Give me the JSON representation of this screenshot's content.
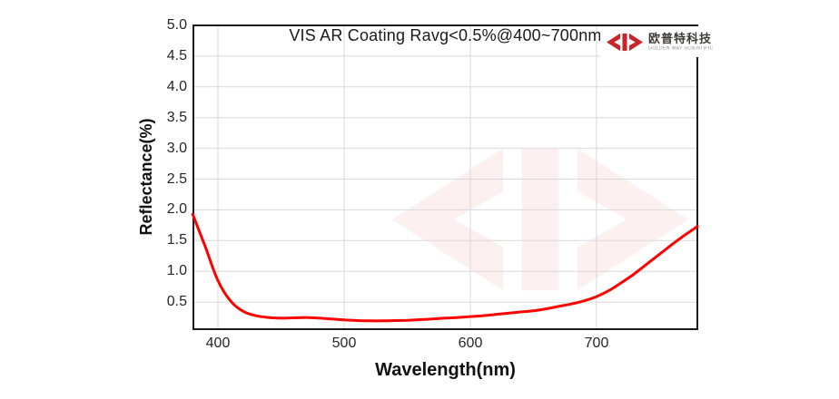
{
  "page": {
    "background": "#ffffff"
  },
  "header_logo": {
    "company_cn": "欧普特科技",
    "company_en": "GOLDEN WAY SCIENTIFIC",
    "mark_color": "#c9242b"
  },
  "chart_data": {
    "type": "line",
    "title": "VIS AR Coating Ravg<0.5%@400~700nm",
    "xlabel": "Wavelength(nm)",
    "ylabel": "Reflectance(%)",
    "x_range": [
      380,
      780
    ],
    "y_range": [
      0,
      5
    ],
    "grid": true,
    "legend_position": "none",
    "grid_color": "#d9d9d9",
    "border_color": "#1a1a1a",
    "watermark": "company logo, faint red, center of plot",
    "x_ticks": [
      {
        "label": "400",
        "value": 400
      },
      {
        "label": "500",
        "value": 500
      },
      {
        "label": "600",
        "value": 600
      },
      {
        "label": "700",
        "value": 700
      }
    ],
    "y_ticks": [
      {
        "label": "5.0",
        "value": 5.0
      },
      {
        "label": "4.5",
        "value": 4.5
      },
      {
        "label": "4.0",
        "value": 4.0
      },
      {
        "label": "3.5",
        "value": 3.5
      },
      {
        "label": "3.0",
        "value": 3.0
      },
      {
        "label": "2.5",
        "value": 2.5
      },
      {
        "label": "2.0",
        "value": 2.0
      },
      {
        "label": "1.5",
        "value": 1.5
      },
      {
        "label": "1.0",
        "value": 1.0
      },
      {
        "label": "0.5",
        "value": 0.5
      }
    ],
    "series": [
      {
        "name": "Reflectance",
        "color": "#ff0000",
        "x": [
          380,
          390,
          400,
          410,
          420,
          430,
          440,
          450,
          460,
          470,
          480,
          490,
          500,
          510,
          520,
          530,
          540,
          550,
          560,
          570,
          580,
          590,
          600,
          610,
          620,
          630,
          640,
          650,
          660,
          670,
          680,
          690,
          700,
          710,
          720,
          730,
          740,
          750,
          760,
          770,
          780
        ],
        "y": [
          1.93,
          1.4,
          0.85,
          0.52,
          0.35,
          0.28,
          0.25,
          0.24,
          0.245,
          0.25,
          0.24,
          0.225,
          0.21,
          0.2,
          0.195,
          0.195,
          0.2,
          0.205,
          0.215,
          0.225,
          0.24,
          0.25,
          0.265,
          0.28,
          0.3,
          0.32,
          0.34,
          0.36,
          0.39,
          0.43,
          0.47,
          0.52,
          0.59,
          0.69,
          0.82,
          0.96,
          1.12,
          1.28,
          1.44,
          1.59,
          1.73
        ]
      }
    ]
  }
}
